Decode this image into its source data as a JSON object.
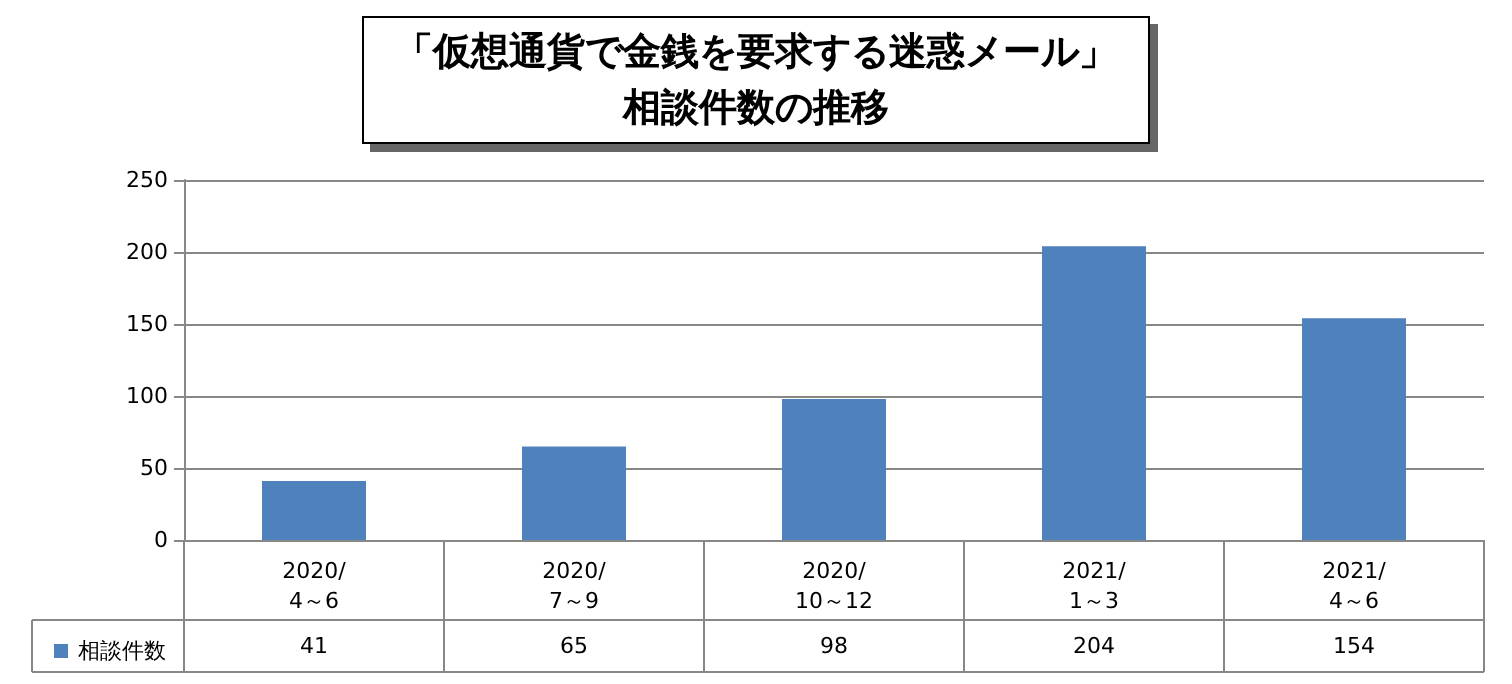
{
  "chart_data": {
    "type": "bar",
    "title": "「仮想通貨で金銭を要求する迷惑メール」相談件数の推移",
    "categories": [
      "2020/\n4～6",
      "2020/\n7～9",
      "2020/\n10～12",
      "2021/\n1～3",
      "2021/\n4～6"
    ],
    "series": [
      {
        "name": "相談件数",
        "color": "#4f81bd",
        "values": [
          41,
          65,
          98,
          204,
          154
        ]
      }
    ],
    "ylim": [
      0,
      250
    ],
    "yticks": [
      0,
      50,
      100,
      150,
      200,
      250
    ],
    "grid": "y",
    "legend": "bottom left",
    "data_labels": true
  }
}
